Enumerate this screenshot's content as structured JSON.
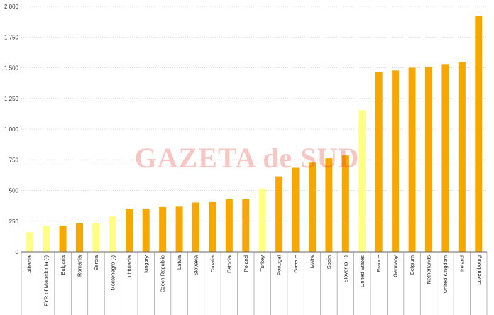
{
  "watermark": "GAZETA de SUD",
  "chart_data": {
    "type": "bar",
    "title": "",
    "xlabel": "",
    "ylabel": "",
    "ylim": [
      0,
      2000
    ],
    "yticks": [
      0,
      250,
      500,
      750,
      1000,
      1250,
      1500,
      1750,
      2000
    ],
    "ytick_labels": [
      "0",
      "250",
      "500",
      "750",
      "1 000",
      "1 250",
      "1 500",
      "1 750",
      "2 000"
    ],
    "grid": "horizontal dotted",
    "colors": {
      "orange": "#f7a800",
      "light": "#ffff88"
    },
    "categories": [
      "Albania",
      "FYR of Macedonia (¹)",
      "Bulgaria",
      "Romania",
      "Serbia",
      "Montenegro (¹)",
      "Lithuania",
      "Hungary",
      "Czech Republic",
      "Latvia",
      "Slovakia",
      "Croatia",
      "Estonia",
      "Poland",
      "Turkey",
      "Portugal",
      "Greece",
      "Malta",
      "Spain",
      "Slovenia (¹)",
      "United States",
      "France",
      "Germany",
      "Belgium",
      "Netherlands",
      "United Kingdom",
      "Ireland",
      "Luxembourg"
    ],
    "values": [
      160,
      210,
      213,
      232,
      232,
      288,
      347,
      352,
      365,
      368,
      402,
      405,
      430,
      430,
      515,
      615,
      685,
      727,
      762,
      785,
      1155,
      1465,
      1478,
      1500,
      1507,
      1530,
      1548,
      1925
    ],
    "bar_colors": [
      "light",
      "light",
      "orange",
      "orange",
      "light",
      "light",
      "orange",
      "orange",
      "orange",
      "orange",
      "orange",
      "orange",
      "orange",
      "orange",
      "light",
      "orange",
      "orange",
      "orange",
      "orange",
      "orange",
      "light",
      "orange",
      "orange",
      "orange",
      "orange",
      "orange",
      "orange",
      "orange"
    ]
  }
}
